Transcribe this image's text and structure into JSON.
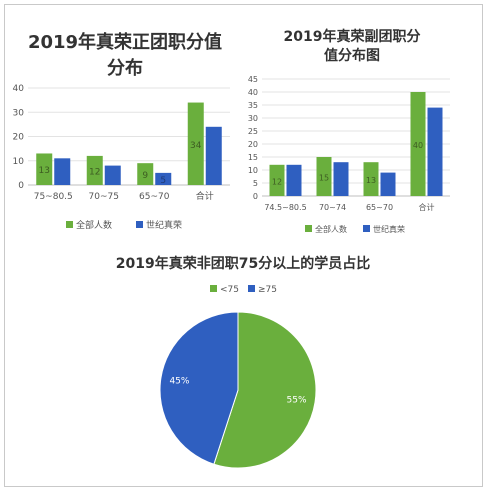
{
  "colors": {
    "green": "#6aaf3d",
    "blue": "#2f5fc0",
    "axis": "#bfbfbf",
    "grid": "#e3e3e3",
    "text": "#555555"
  },
  "chart_data": [
    {
      "type": "bar",
      "title": "2019年真荣正团职分值分布",
      "title_lines": [
        "2019年真荣正团职分值",
        "分布"
      ],
      "categories": [
        "75~80.5",
        "70~75",
        "65~70",
        "合计"
      ],
      "series": [
        {
          "name": "全部人数",
          "values": [
            13,
            12,
            9,
            34
          ]
        },
        {
          "name": "世纪真荣",
          "values": [
            11,
            8,
            5,
            24
          ]
        }
      ],
      "ylim": [
        0,
        40
      ],
      "yticks": [
        "0",
        "10",
        "20",
        "30",
        "40"
      ],
      "value_labels": {
        "全部人数": [
          "13",
          "12",
          "9",
          "34"
        ],
        "世纪真荣": [
          "",
          "",
          "5",
          ""
        ]
      },
      "grid": true,
      "legend_position": "bottom"
    },
    {
      "type": "bar",
      "title": "2019年真荣副团职分值分布图",
      "title_lines": [
        "2019年真荣副团职分",
        "值分布图"
      ],
      "categories": [
        "74.5~80.5",
        "70~74",
        "65~70",
        "合计"
      ],
      "series": [
        {
          "name": "全部人数",
          "values": [
            12,
            15,
            13,
            40
          ]
        },
        {
          "name": "世纪真荣",
          "values": [
            12,
            13,
            9,
            34
          ]
        }
      ],
      "ylim": [
        0,
        45
      ],
      "yticks": [
        "0",
        "5",
        "10",
        "15",
        "20",
        "25",
        "30",
        "35",
        "40",
        "45"
      ],
      "value_labels": {
        "全部人数": [
          "12",
          "15",
          "13",
          "40"
        ],
        "世纪真荣": [
          "",
          "",
          "",
          ""
        ]
      },
      "grid": true,
      "legend_position": "bottom"
    },
    {
      "type": "pie",
      "title": "2019年真荣非团职75分以上的学员占比",
      "categories": [
        "<75",
        "≥75"
      ],
      "values": [
        55,
        45
      ],
      "labels": [
        "55%",
        "45%"
      ],
      "legend_position": "top"
    }
  ]
}
